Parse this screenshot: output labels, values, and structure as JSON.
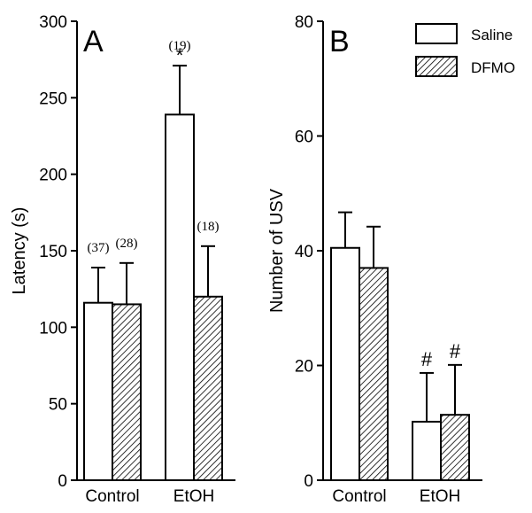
{
  "chart_data": [
    {
      "panel": "A",
      "type": "bar",
      "categories": [
        "Control",
        "EtOH"
      ],
      "ylabel": "Latency (s)",
      "ylim": [
        0,
        300
      ],
      "yticks": [
        "0",
        "50",
        "100",
        "150",
        "200",
        "250",
        "300"
      ],
      "series": [
        {
          "name": "Saline",
          "values": [
            116,
            239
          ],
          "errors": [
            23,
            32
          ],
          "n_labels": [
            "(37)",
            "(19)"
          ],
          "sig": [
            "",
            "*"
          ]
        },
        {
          "name": "DFMO",
          "values": [
            115,
            120
          ],
          "errors": [
            27,
            33
          ],
          "n_labels": [
            "(28)",
            "(18)"
          ],
          "sig": [
            "",
            ""
          ]
        }
      ]
    },
    {
      "panel": "B",
      "type": "bar",
      "categories": [
        "Control",
        "EtOH"
      ],
      "ylabel": "Number of USV",
      "ylim": [
        0,
        80
      ],
      "yticks": [
        "0",
        "20",
        "40",
        "60",
        "80"
      ],
      "series": [
        {
          "name": "Saline",
          "values": [
            40.5,
            10.2
          ],
          "errors": [
            6.2,
            8.5
          ],
          "sig": [
            "",
            "#"
          ]
        },
        {
          "name": "DFMO",
          "values": [
            37,
            11.4
          ],
          "errors": [
            7.2,
            8.7
          ],
          "sig": [
            "",
            "#"
          ]
        }
      ]
    }
  ],
  "legend": {
    "position": "top-right",
    "items": [
      {
        "label": "Saline",
        "fill": "white"
      },
      {
        "label": "DFMO",
        "fill": "hatched"
      }
    ]
  },
  "colors": {
    "bar_outline": "#000000",
    "saline_fill": "#ffffff",
    "hatch": "#000000"
  }
}
